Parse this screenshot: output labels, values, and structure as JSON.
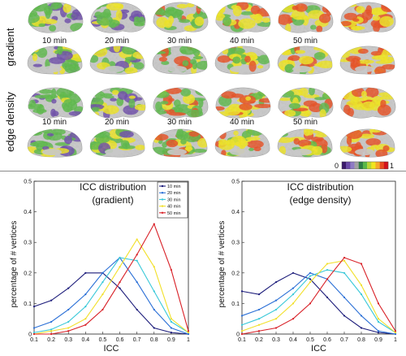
{
  "brains": {
    "row_labels": [
      "gradient",
      "edge density"
    ],
    "time_labels": [
      "10 min",
      "20 min",
      "30 min",
      "40 min",
      "50 min"
    ],
    "colorbar": {
      "min_label": "0",
      "max_label": "1",
      "colors": [
        "#3b1a6b",
        "#6b4aa8",
        "#8e7bc4",
        "#a2a2a2",
        "#2d7d44",
        "#59b847",
        "#b7d733",
        "#f0e51f",
        "#f6a82a",
        "#e94c1f",
        "#d3121c"
      ]
    },
    "surface_colors": {
      "cortex": "#c8c8c8",
      "low": "#6b4aa8",
      "mid": "#59b847",
      "high": "#f0e51f",
      "top": "#e94c1f"
    }
  },
  "chart_data": [
    {
      "type": "line",
      "title": "ICC distribution",
      "subtitle": "(gradient)",
      "xlabel": "ICC",
      "ylabel": "percentage of # vertices",
      "xlim": [
        0.1,
        1.0
      ],
      "ylim": [
        0,
        0.5
      ],
      "x": [
        0.1,
        0.2,
        0.3,
        0.4,
        0.5,
        0.6,
        0.7,
        0.8,
        0.9,
        1.0
      ],
      "xticks": [
        "0.1",
        "0.2",
        "0.3",
        "0.4",
        "0.5",
        "0.6",
        "0.7",
        "0.8",
        "0.9",
        "1"
      ],
      "yticks": [
        "0",
        "0.1",
        "0.2",
        "0.3",
        "0.4",
        "0.5"
      ],
      "grid": false,
      "legend": "top-right",
      "series": [
        {
          "name": "10 min",
          "color": "#1b1b7a",
          "values": [
            0.09,
            0.11,
            0.15,
            0.2,
            0.2,
            0.15,
            0.08,
            0.02,
            0.005,
            0.0
          ]
        },
        {
          "name": "20 min",
          "color": "#2a6fd6",
          "values": [
            0.02,
            0.04,
            0.08,
            0.13,
            0.2,
            0.25,
            0.17,
            0.08,
            0.02,
            0.0
          ]
        },
        {
          "name": "30 min",
          "color": "#38c8d8",
          "values": [
            0.005,
            0.015,
            0.04,
            0.09,
            0.17,
            0.25,
            0.24,
            0.14,
            0.04,
            0.005
          ]
        },
        {
          "name": "40 min",
          "color": "#f2e02b",
          "values": [
            0.0,
            0.01,
            0.02,
            0.05,
            0.13,
            0.22,
            0.31,
            0.22,
            0.05,
            0.005
          ]
        },
        {
          "name": "50 min",
          "color": "#d81f26",
          "values": [
            0.0,
            0.0,
            0.01,
            0.03,
            0.08,
            0.17,
            0.26,
            0.36,
            0.21,
            0.01
          ]
        }
      ]
    },
    {
      "type": "line",
      "title": "ICC distribution",
      "subtitle": "(edge density)",
      "xlabel": "ICC",
      "ylabel": "percentage of # vertices",
      "xlim": [
        0.1,
        1.0
      ],
      "ylim": [
        0,
        0.5
      ],
      "x": [
        0.1,
        0.2,
        0.3,
        0.4,
        0.5,
        0.6,
        0.7,
        0.8,
        0.9,
        1.0
      ],
      "xticks": [
        "0.1",
        "0.2",
        "0.3",
        "0.4",
        "0.5",
        "0.6",
        "0.7",
        "0.8",
        "0.9",
        "1"
      ],
      "yticks": [
        "0",
        "0.1",
        "0.2",
        "0.3",
        "0.4",
        "0.5"
      ],
      "grid": false,
      "series": [
        {
          "name": "10 min",
          "color": "#1b1b7a",
          "values": [
            0.14,
            0.13,
            0.17,
            0.2,
            0.18,
            0.12,
            0.06,
            0.02,
            0.005,
            0.0
          ]
        },
        {
          "name": "20 min",
          "color": "#2a6fd6",
          "values": [
            0.06,
            0.08,
            0.11,
            0.15,
            0.2,
            0.18,
            0.12,
            0.06,
            0.01,
            0.0
          ]
        },
        {
          "name": "30 min",
          "color": "#38c8d8",
          "values": [
            0.03,
            0.05,
            0.08,
            0.13,
            0.19,
            0.21,
            0.2,
            0.13,
            0.04,
            0.005
          ]
        },
        {
          "name": "40 min",
          "color": "#f2e02b",
          "values": [
            0.01,
            0.03,
            0.05,
            0.1,
            0.17,
            0.23,
            0.24,
            0.16,
            0.05,
            0.005
          ]
        },
        {
          "name": "50 min",
          "color": "#d81f26",
          "values": [
            0.0,
            0.01,
            0.02,
            0.05,
            0.1,
            0.18,
            0.25,
            0.23,
            0.1,
            0.01
          ]
        }
      ]
    }
  ]
}
